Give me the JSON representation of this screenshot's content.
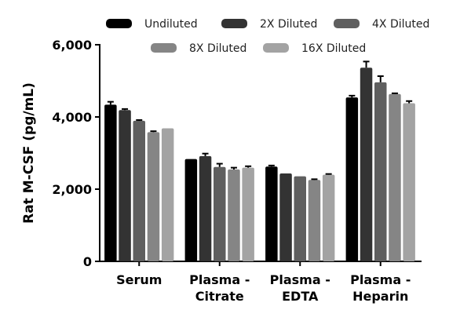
{
  "chart_data": {
    "type": "bar",
    "title": "",
    "xlabel": "",
    "ylabel": "Rat M-CSF (pg/mL)",
    "ylim": [
      0,
      6000
    ],
    "yticks": [
      "0",
      "2,000",
      "4,000",
      "6,000"
    ],
    "ytick_values": [
      0,
      2000,
      4000,
      6000
    ],
    "categories": [
      [
        "Serum"
      ],
      [
        "Plasma -",
        "Citrate"
      ],
      [
        "Plasma -",
        "EDTA"
      ],
      [
        "Plasma -",
        "Heparin"
      ]
    ],
    "legend_position": "top",
    "grid": false,
    "series": [
      {
        "name": "Undiluted",
        "color": "#000000",
        "values": [
          4340,
          2835,
          2625,
          4540
        ],
        "errors": [
          80,
          0,
          30,
          50
        ]
      },
      {
        "name": "2X Diluted",
        "color": "#333333",
        "values": [
          4190,
          2915,
          2435,
          5365
        ],
        "errors": [
          30,
          70,
          0,
          170
        ]
      },
      {
        "name": "4X Diluted",
        "color": "#5f5f5f",
        "values": [
          3895,
          2615,
          2355,
          4960
        ],
        "errors": [
          20,
          90,
          0,
          170
        ]
      },
      {
        "name": "8X Diluted",
        "color": "#858585",
        "values": [
          3580,
          2545,
          2255,
          4635
        ],
        "errors": [
          25,
          50,
          20,
          20
        ]
      },
      {
        "name": "16X Diluted",
        "color": "#a3a3a3",
        "values": [
          3685,
          2595,
          2400,
          4380
        ],
        "errors": [
          0,
          40,
          20,
          60
        ]
      }
    ]
  }
}
